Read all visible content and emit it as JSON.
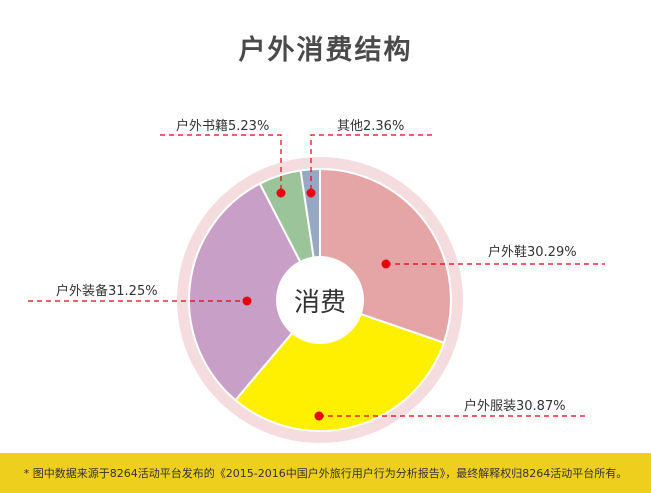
{
  "title": "户外消费结构",
  "center_label": "消费",
  "footer_note": "* 图中数据来源于8264活动平台发布的《2015-2016中国户外旅行用户行为分析报告》，最终解释权归8264活动平台所有。",
  "colors": {
    "ring": "#f5dcdf",
    "leader_line": "#e60012",
    "footer_bg": "#efcf1e"
  },
  "chart_data": {
    "type": "pie",
    "title": "户外消费结构",
    "center_label": "消费",
    "categories": [
      "户外鞋",
      "户外服装",
      "户外装备",
      "户外书籍",
      "其他"
    ],
    "values": [
      30.29,
      30.87,
      31.25,
      5.23,
      2.36
    ],
    "unit": "%",
    "colors": [
      "#e5a5a7",
      "#fff000",
      "#c89fc6",
      "#9cc49a",
      "#98a8c3"
    ],
    "labels": [
      "户外鞋30.29%",
      "户外服装30.87%",
      "户外装备31.25%",
      "户外书籍5.23%",
      "其他2.36%"
    ],
    "start_angle": "top, clockwise",
    "legend": "none (callout labels)"
  },
  "labels": {
    "shoes": "户外鞋30.29%",
    "clothing": "户外服装30.87%",
    "gear": "户外装备31.25%",
    "books": "户外书籍5.23%",
    "other": "其他2.36%"
  }
}
